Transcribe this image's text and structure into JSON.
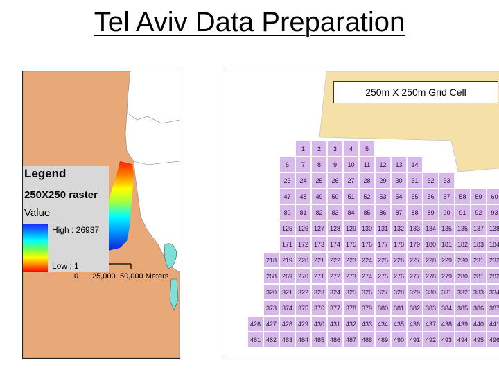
{
  "title": "Tel Aviv Data Preparation",
  "legend": {
    "title": "Legend",
    "layer": "250X250  raster",
    "field": "Value",
    "high": "High : 26937",
    "low": "Low : 1"
  },
  "scale_bar": {
    "labels": [
      "0",
      "25,000",
      "50,000 Meters"
    ]
  },
  "grid_caption": "250m X 250m Grid Cell",
  "grid_rows": [
    {
      "start_col": 3,
      "cells": [
        "1",
        "2",
        "3",
        "4",
        "5"
      ]
    },
    {
      "start_col": 2,
      "cells": [
        "6",
        "7",
        "8",
        "9",
        "10",
        "11",
        "12",
        "13",
        "14"
      ]
    },
    {
      "start_col": 2,
      "cells": [
        "23",
        "24",
        "25",
        "26",
        "27",
        "28",
        "29",
        "30",
        "31",
        "32",
        "33"
      ]
    },
    {
      "start_col": 2,
      "cells": [
        "47",
        "48",
        "49",
        "50",
        "51",
        "52",
        "53",
        "54",
        "55",
        "56",
        "57",
        "58",
        "59",
        "60"
      ]
    },
    {
      "start_col": 2,
      "cells": [
        "80",
        "81",
        "82",
        "83",
        "84",
        "85",
        "86",
        "87",
        "88",
        "89",
        "90",
        "91",
        "92",
        "93"
      ]
    },
    {
      "start_col": 2,
      "cells": [
        "125",
        "126",
        "127",
        "128",
        "129",
        "130",
        "131",
        "132",
        "133",
        "134",
        "135",
        "135",
        "137",
        "138"
      ]
    },
    {
      "start_col": 2,
      "cells": [
        "171",
        "172",
        "173",
        "174",
        "175",
        "176",
        "177",
        "178",
        "179",
        "180",
        "181",
        "182",
        "183",
        "184"
      ]
    },
    {
      "start_col": 1,
      "cells": [
        "218",
        "219",
        "220",
        "221",
        "222",
        "223",
        "224",
        "225",
        "226",
        "227",
        "228",
        "229",
        "230",
        "231",
        "232"
      ]
    },
    {
      "start_col": 1,
      "cells": [
        "268",
        "269",
        "270",
        "271",
        "272",
        "273",
        "274",
        "275",
        "276",
        "277",
        "278",
        "279",
        "280",
        "281",
        "282"
      ]
    },
    {
      "start_col": 1,
      "cells": [
        "320",
        "321",
        "322",
        "323",
        "324",
        "325",
        "326",
        "327",
        "328",
        "329",
        "330",
        "331",
        "332",
        "333",
        "334"
      ]
    },
    {
      "start_col": 1,
      "cells": [
        "373",
        "374",
        "375",
        "376",
        "377",
        "378",
        "379",
        "380",
        "381",
        "382",
        "383",
        "384",
        "385",
        "386",
        "387"
      ]
    },
    {
      "start_col": 0,
      "cells": [
        "426",
        "427",
        "428",
        "429",
        "430",
        "431",
        "432",
        "433",
        "434",
        "435",
        "436",
        "437",
        "438",
        "439",
        "440",
        "441"
      ]
    },
    {
      "start_col": 0,
      "cells": [
        "481",
        "482",
        "483",
        "484",
        "485",
        "486",
        "487",
        "488",
        "489",
        "490",
        "491",
        "492",
        "493",
        "494",
        "495",
        "496"
      ]
    }
  ],
  "colors": {
    "land": "#e8a878",
    "sand": "#f5e0a8",
    "cell": "#d9b8ee",
    "water": "#7fe0d8"
  }
}
